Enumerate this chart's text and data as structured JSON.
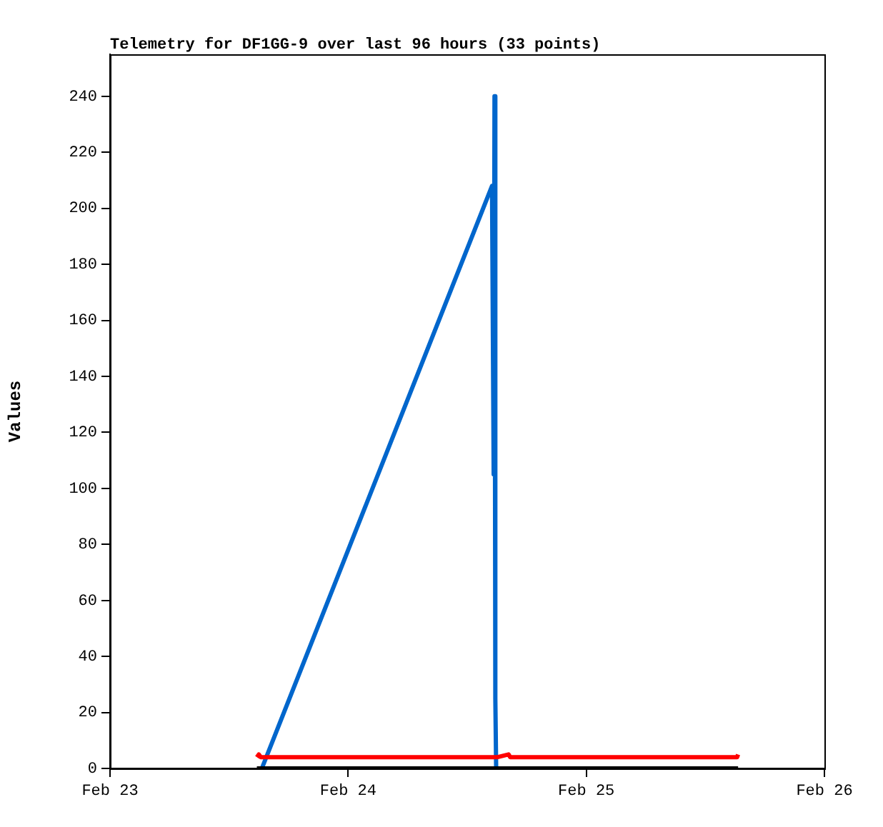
{
  "chart_data": {
    "type": "line",
    "title": "Telemetry for DF1GG-9 over last 96 hours (33 points)",
    "ylabel": "Values",
    "xlim": [
      "--02-23",
      "--02-26"
    ],
    "xticks": [
      {
        "value": "--02-23",
        "label": "Feb 23"
      },
      {
        "value": "--02-24",
        "label": "Feb 24"
      },
      {
        "value": "--02-25",
        "label": "Feb 25"
      },
      {
        "value": "--02-26",
        "label": "Feb 26"
      }
    ],
    "ylim": [
      0,
      255
    ],
    "yticks": [
      0,
      20,
      40,
      60,
      80,
      100,
      120,
      140,
      160,
      180,
      200,
      220,
      240
    ],
    "grid": false,
    "legend": false,
    "marker": "none",
    "line_style": "solid",
    "series": [
      {
        "color": "#000000",
        "x": [
          "--02-23T14:48",
          "--02-25T15:18"
        ],
        "values": [
          0,
          0
        ]
      },
      {
        "color": "#ff0000",
        "x": [
          "--02-23T14:48",
          "--02-23T15:00",
          "--02-23T15:12",
          "--02-24T15:00",
          "--02-24T16:10",
          "--02-24T16:20",
          "--02-25T15:12",
          "--02-25T15:18"
        ],
        "values": [
          4,
          5,
          4,
          4,
          5,
          4,
          4,
          5
        ]
      },
      {
        "color": "#0066cc",
        "x": [
          "--02-23T15:18",
          "--02-24T14:30",
          "--02-24T14:40",
          "--02-24T14:45",
          "--02-24T14:50",
          "--02-24T14:55"
        ],
        "values": [
          0,
          208,
          105,
          240,
          25,
          0
        ]
      }
    ]
  }
}
